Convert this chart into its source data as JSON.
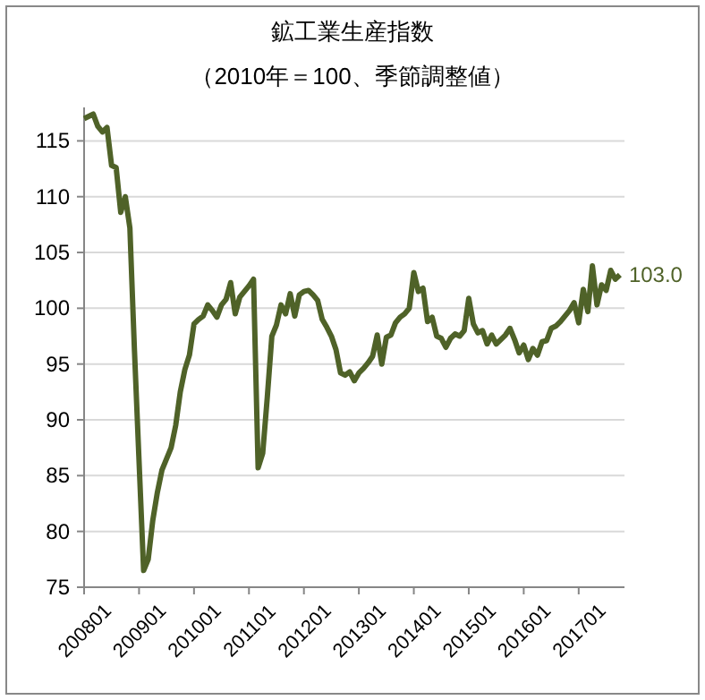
{
  "chart_data": {
    "type": "line",
    "title": "鉱工業生産指数",
    "subtitle": "（2010年＝100、季節調整値）",
    "categories": [
      "200801",
      null,
      null,
      null,
      null,
      null,
      null,
      null,
      null,
      null,
      null,
      null,
      "200901",
      null,
      null,
      null,
      null,
      null,
      null,
      null,
      null,
      null,
      null,
      null,
      "201001",
      null,
      null,
      null,
      null,
      null,
      null,
      null,
      null,
      null,
      null,
      null,
      "201101",
      null,
      null,
      null,
      null,
      null,
      null,
      null,
      null,
      null,
      null,
      null,
      "201201",
      null,
      null,
      null,
      null,
      null,
      null,
      null,
      null,
      null,
      null,
      null,
      "201301",
      null,
      null,
      null,
      null,
      null,
      null,
      null,
      null,
      null,
      null,
      null,
      "201401",
      null,
      null,
      null,
      null,
      null,
      null,
      null,
      null,
      null,
      null,
      null,
      "201501",
      null,
      null,
      null,
      null,
      null,
      null,
      null,
      null,
      null,
      null,
      null,
      "201601",
      null,
      null,
      null,
      null,
      null,
      null,
      null,
      null,
      null,
      null,
      null,
      "201701",
      null,
      null,
      null,
      null,
      null,
      null,
      null,
      null,
      null
    ],
    "color": "#4f6228",
    "values": [
      117.0,
      117.2,
      117.4,
      116.3,
      115.8,
      116.2,
      112.8,
      112.6,
      108.6,
      110.0,
      107.2,
      96.2,
      86.3,
      76.5,
      77.5,
      81.0,
      83.5,
      85.5,
      86.5,
      87.5,
      89.5,
      92.5,
      94.5,
      95.8,
      98.6,
      99.0,
      99.3,
      100.3,
      99.8,
      99.2,
      100.3,
      100.8,
      102.3,
      99.5,
      101.0,
      101.5,
      102.0,
      102.6,
      85.7,
      87.0,
      92.0,
      97.5,
      98.5,
      100.3,
      99.5,
      101.3,
      99.3,
      101.2,
      101.5,
      101.6,
      101.2,
      100.7,
      99.0,
      98.3,
      97.5,
      96.3,
      94.2,
      94.0,
      94.3,
      93.5,
      94.2,
      94.6,
      95.1,
      95.7,
      97.6,
      95.0,
      97.4,
      97.6,
      98.7,
      99.2,
      99.5,
      100.0,
      103.2,
      101.5,
      101.8,
      98.8,
      99.2,
      97.5,
      97.3,
      96.5,
      97.3,
      97.7,
      97.5,
      98.0,
      100.9,
      98.6,
      97.8,
      98.0,
      96.8,
      97.6,
      96.8,
      97.2,
      97.6,
      98.2,
      97.2,
      96.0,
      96.7,
      95.4,
      96.4,
      95.8,
      97.0,
      97.1,
      98.2,
      98.4,
      98.8,
      99.3,
      99.8,
      100.5,
      98.7,
      101.7,
      99.7,
      103.8,
      100.3,
      102.1,
      101.6,
      103.4,
      102.6,
      103.0
    ],
    "value_labels": [
      null,
      null,
      null,
      null,
      null,
      null,
      null,
      null,
      null,
      null,
      null,
      null,
      null,
      null,
      null,
      null,
      null,
      null,
      null,
      null,
      null,
      null,
      null,
      null,
      null,
      null,
      null,
      null,
      null,
      null,
      null,
      null,
      null,
      null,
      null,
      null,
      null,
      null,
      null,
      null,
      null,
      null,
      null,
      null,
      null,
      null,
      null,
      null,
      null,
      null,
      null,
      null,
      null,
      null,
      null,
      null,
      null,
      null,
      null,
      null,
      null,
      null,
      null,
      null,
      null,
      null,
      null,
      null,
      null,
      null,
      null,
      null,
      null,
      null,
      null,
      null,
      null,
      null,
      null,
      null,
      null,
      null,
      null,
      null,
      null,
      null,
      null,
      null,
      null,
      null,
      null,
      null,
      null,
      null,
      null,
      null,
      null,
      null,
      null,
      null,
      null,
      null,
      null,
      null,
      null,
      null,
      null,
      null,
      null,
      null,
      null,
      null,
      null,
      null,
      null,
      null,
      null,
      "103.0"
    ],
    "ylim": [
      75,
      118
    ],
    "yticks": [
      75,
      80,
      85,
      90,
      95,
      100,
      105,
      110,
      115
    ],
    "grid": "y"
  }
}
